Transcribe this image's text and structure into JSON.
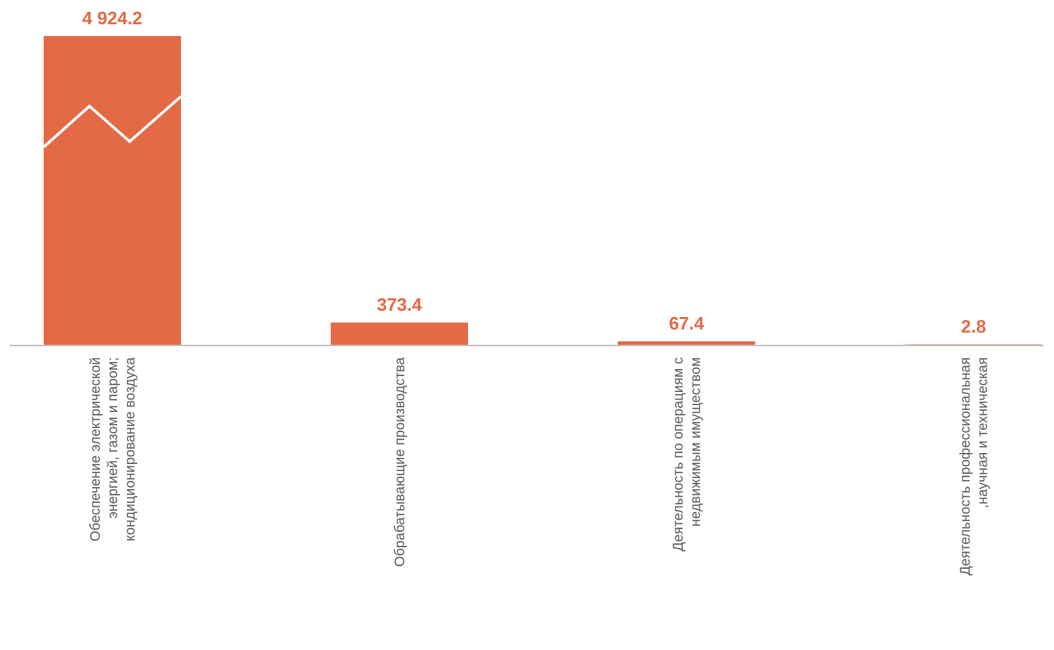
{
  "colors": {
    "bar": "#E46945",
    "value_label": "#E46945",
    "axis": "#BFBFBF",
    "category_label": "#595959",
    "break_mark": "#FFFFFF"
  },
  "chart_data": {
    "type": "bar",
    "title": "",
    "xlabel": "",
    "ylabel": "",
    "axis_break": true,
    "grid": false,
    "legend": "none",
    "categories": [
      [
        "Обеспечение электрической",
        "энергией, газом и паром;",
        "кондиционирование воздуха"
      ],
      [
        "Обрабатывающие производства"
      ],
      [
        "Деятельность по операциям с",
        "недвижимым имуществом"
      ],
      [
        "Деятельность профессиональная",
        ",научная и техническая"
      ]
    ],
    "values": [
      4924.2,
      373.4,
      67.4,
      2.8
    ],
    "value_labels": [
      "4 924.2",
      "373.4",
      "67.4",
      "2.8"
    ]
  }
}
